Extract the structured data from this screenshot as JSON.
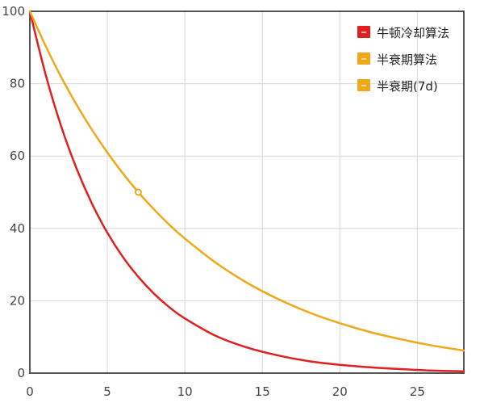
{
  "chart_data": {
    "type": "line",
    "title": "",
    "xlabel": "",
    "ylabel": "",
    "xlim": [
      0,
      28
    ],
    "ylim": [
      0,
      100
    ],
    "x_ticks": [
      0,
      5,
      10,
      15,
      20,
      25
    ],
    "y_ticks": [
      0,
      20,
      40,
      60,
      80,
      100
    ],
    "grid": true,
    "legend_position": "top-right",
    "series": [
      {
        "name": "牛顿冷却算法",
        "color": "#e02020",
        "marker_color": "#e02020",
        "points": [
          [
            0,
            100
          ],
          [
            1,
            82.8
          ],
          [
            2,
            68.5
          ],
          [
            3,
            56.7
          ],
          [
            4,
            46.9
          ],
          [
            5,
            38.8
          ],
          [
            6,
            32.1
          ],
          [
            7,
            26.6
          ],
          [
            8,
            22.0
          ],
          [
            9,
            18.2
          ],
          [
            10,
            15.1
          ],
          [
            12,
            10.3
          ],
          [
            14,
            7.1
          ],
          [
            16,
            4.9
          ],
          [
            18,
            3.3
          ],
          [
            20,
            2.3
          ],
          [
            22,
            1.6
          ],
          [
            24,
            1.1
          ],
          [
            26,
            0.7
          ],
          [
            28,
            0.5
          ]
        ]
      },
      {
        "name": "半衰期算法",
        "color": "#f0a818",
        "marker_color": "#f0a818",
        "points": [
          [
            0,
            100
          ],
          [
            1,
            90.6
          ],
          [
            2,
            82.0
          ],
          [
            3,
            74.3
          ],
          [
            4,
            67.3
          ],
          [
            5,
            61.0
          ],
          [
            6,
            55.2
          ],
          [
            7,
            50.0
          ],
          [
            8,
            45.3
          ],
          [
            9,
            41.0
          ],
          [
            10,
            37.2
          ],
          [
            12,
            30.5
          ],
          [
            14,
            25.0
          ],
          [
            16,
            20.5
          ],
          [
            18,
            16.8
          ],
          [
            20,
            13.8
          ],
          [
            22,
            11.3
          ],
          [
            24,
            9.3
          ],
          [
            26,
            7.6
          ],
          [
            28,
            6.25
          ]
        ]
      },
      {
        "name": "半衰期(7d)",
        "color": "#f0a818",
        "marker_color": "#f0a818",
        "points": [
          [
            7,
            50
          ]
        ]
      }
    ]
  }
}
